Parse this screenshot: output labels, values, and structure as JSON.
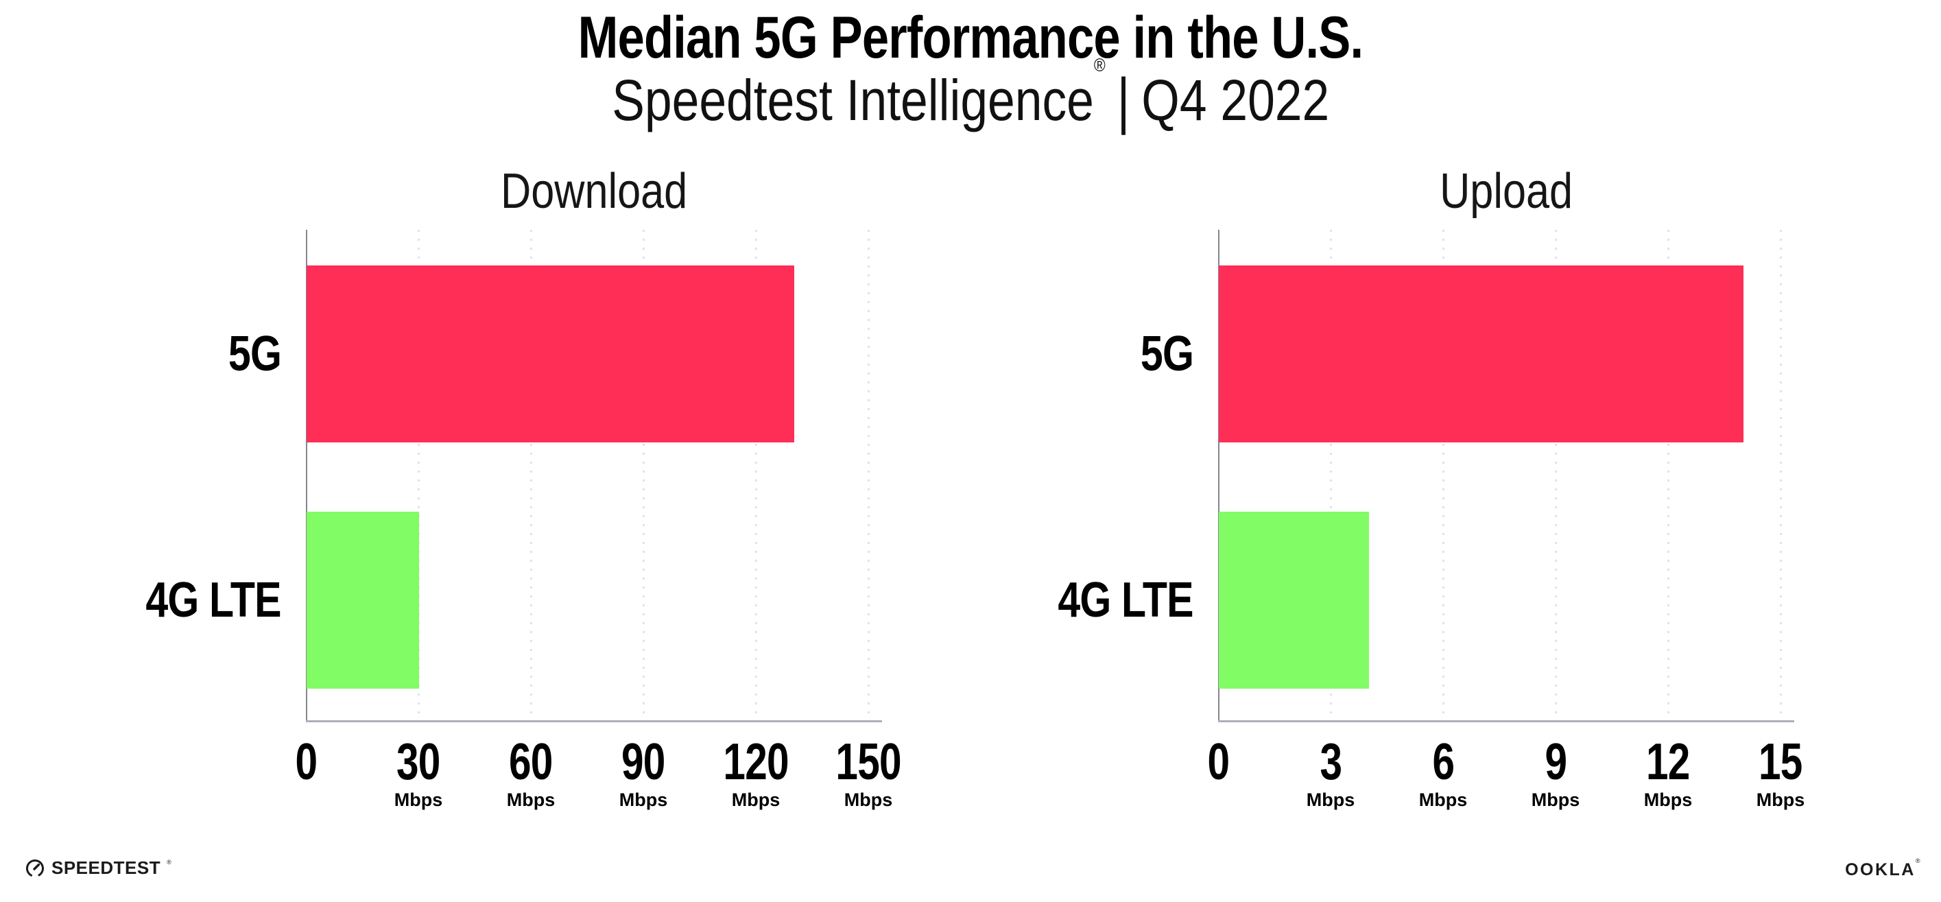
{
  "header": {
    "title": "Median 5G Performance in the U.S.",
    "subtitle_brand": "Speedtest Intelligence",
    "subtitle_reg_mark": "®",
    "subtitle_separator": "|",
    "subtitle_period": "Q4 2022"
  },
  "colors": {
    "bar_5g": "#fe2e57",
    "bar_4g_lte": "#81fc64",
    "gridline": "#e0e1ec",
    "y_spine": "#86868e",
    "x_spine": "#aeafb8",
    "text": "#000000"
  },
  "chart_data": [
    {
      "type": "bar",
      "orientation": "horizontal",
      "title": "Download",
      "categories": [
        "5G",
        "4G LTE"
      ],
      "values": [
        130,
        30
      ],
      "unit": "Mbps",
      "xlim": [
        0,
        150
      ],
      "xticks": [
        0,
        30,
        60,
        90,
        120,
        150
      ],
      "grid": "vertical-dotted",
      "legend": "none",
      "bar_colors": [
        "#fe2e57",
        "#81fc64"
      ]
    },
    {
      "type": "bar",
      "orientation": "horizontal",
      "title": "Upload",
      "categories": [
        "5G",
        "4G LTE"
      ],
      "values": [
        14,
        4
      ],
      "unit": "Mbps",
      "xlim": [
        0,
        15
      ],
      "xticks": [
        0,
        3,
        6,
        9,
        12,
        15
      ],
      "grid": "vertical-dotted",
      "legend": "none",
      "bar_colors": [
        "#fe2e57",
        "#81fc64"
      ]
    }
  ],
  "footer": {
    "speedtest_label": "SPEEDTEST",
    "speedtest_reg": "®",
    "ookla_label": "OOKLA",
    "ookla_reg": "®"
  }
}
